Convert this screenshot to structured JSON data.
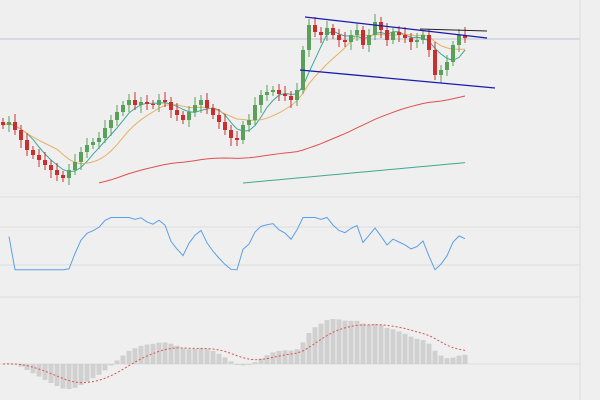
{
  "chart_data": [
    {
      "type": "candlestick",
      "pane": "price",
      "closes": [
        75,
        78,
        70,
        60,
        50,
        45,
        40,
        35,
        30,
        25,
        22,
        30,
        38,
        48,
        55,
        58,
        62,
        72,
        80,
        88,
        95,
        100,
        95,
        98,
        96,
        95,
        100,
        98,
        90,
        85,
        80,
        88,
        95,
        100,
        92,
        85,
        78,
        70,
        62,
        60,
        75,
        80,
        95,
        105,
        108,
        110,
        106,
        104,
        100,
        110,
        150,
        175,
        168,
        165,
        172,
        165,
        160,
        158,
        165,
        170,
        155,
        165,
        178,
        170,
        160,
        168,
        165,
        162,
        158,
        160,
        165,
        150,
        125,
        130,
        138,
        155,
        165,
        162
      ],
      "moving_averages": [
        {
          "period": 5,
          "color": "#3aa89a"
        },
        {
          "period": 10,
          "color": "#e8b060"
        },
        {
          "period": 50,
          "color": "#e05050"
        },
        {
          "period": 200,
          "color": "#40a890"
        }
      ],
      "trendlines_color": "#1a1ab0",
      "up_color": "#5aa05a",
      "down_color": "#c83030",
      "grid": true
    },
    {
      "type": "line",
      "pane": "rsi",
      "color": "#5aa0e8",
      "levels": [
        30,
        70
      ]
    },
    {
      "type": "bar",
      "pane": "macd",
      "histogram_color": "#d0d0d0",
      "signal_color": "#e05050"
    }
  ]
}
